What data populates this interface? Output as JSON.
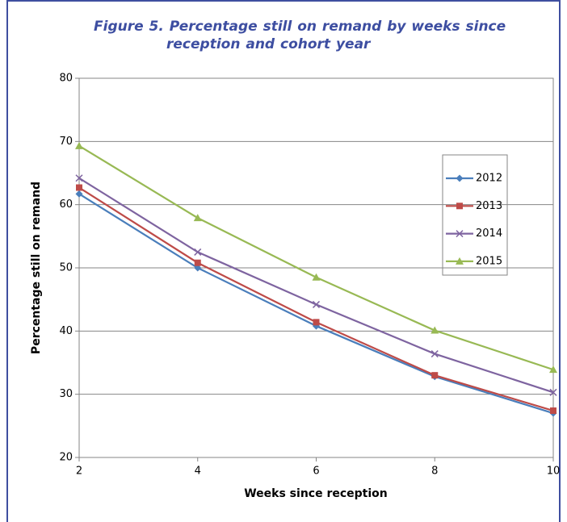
{
  "chart_data": {
    "type": "line",
    "title": "Figure 5. Percentage still on remand by weeks since reception and cohort year",
    "x_label": "Weeks since reception",
    "y_label": "Percentage still on remand",
    "x": [
      2,
      4,
      6,
      8,
      10
    ],
    "xlim": [
      2,
      10
    ],
    "xticks": [
      2,
      4,
      6,
      8,
      10
    ],
    "ylim": [
      20,
      80
    ],
    "yticks": [
      20,
      30,
      40,
      50,
      60,
      70,
      80
    ],
    "grid": true,
    "legend": "right",
    "series": [
      {
        "name": "2012",
        "color": "#4a7ebb",
        "marker": "diamond",
        "values": [
          61.7,
          50.0,
          40.8,
          32.8,
          27.0
        ]
      },
      {
        "name": "2013",
        "color": "#be4b48",
        "marker": "square",
        "values": [
          62.7,
          50.8,
          41.4,
          33.0,
          27.4
        ]
      },
      {
        "name": "2014",
        "color": "#7e64a0",
        "marker": "x",
        "values": [
          64.2,
          52.5,
          44.2,
          36.4,
          30.3
        ]
      },
      {
        "name": "2015",
        "color": "#98b954",
        "marker": "triangle",
        "values": [
          69.3,
          57.9,
          48.5,
          40.1,
          33.9
        ]
      }
    ]
  }
}
